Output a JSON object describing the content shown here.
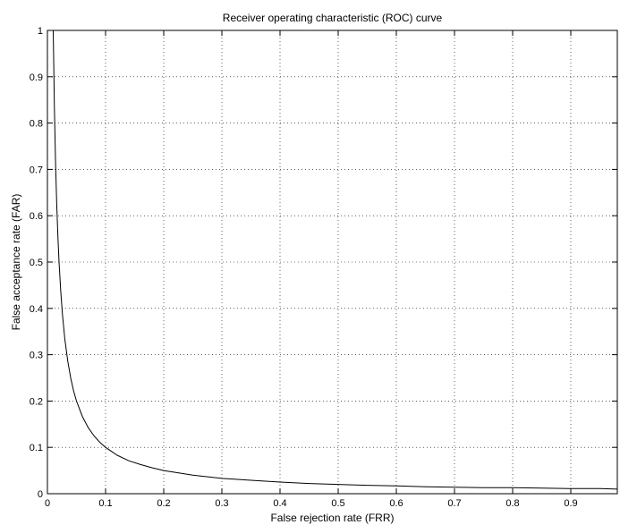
{
  "chart_data": {
    "type": "line",
    "title": "Receiver operating characteristic (ROC) curve",
    "xlabel": "False rejection rate (FRR)",
    "ylabel": "False acceptance rate (FAR)",
    "xlim": [
      0,
      0.98
    ],
    "ylim": [
      0,
      1
    ],
    "xticks": [
      0,
      0.1,
      0.2,
      0.3,
      0.4,
      0.5,
      0.6,
      0.7,
      0.8,
      0.9
    ],
    "xtick_labels": [
      "0",
      "0.1",
      "0.2",
      "0.3",
      "0.4",
      "0.5",
      "0.6",
      "0.7",
      "0.8",
      "0.9"
    ],
    "yticks": [
      0,
      0.1,
      0.2,
      0.3,
      0.4,
      0.5,
      0.6,
      0.7,
      0.8,
      0.9,
      1
    ],
    "ytick_labels": [
      "0",
      "0.1",
      "0.2",
      "0.3",
      "0.4",
      "0.5",
      "0.6",
      "0.7",
      "0.8",
      "0.9",
      "1"
    ],
    "grid": true,
    "series": [
      {
        "color": "#000000",
        "x": [
          0.01,
          0.012,
          0.014,
          0.016,
          0.018,
          0.02,
          0.023,
          0.026,
          0.03,
          0.035,
          0.04,
          0.045,
          0.05,
          0.06,
          0.07,
          0.08,
          0.09,
          0.1,
          0.12,
          0.14,
          0.16,
          0.18,
          0.2,
          0.25,
          0.3,
          0.35,
          0.4,
          0.45,
          0.5,
          0.55,
          0.6,
          0.65,
          0.7,
          0.75,
          0.8,
          0.85,
          0.9,
          0.95,
          0.98
        ],
        "y": [
          1.0,
          0.833,
          0.714,
          0.625,
          0.556,
          0.5,
          0.435,
          0.385,
          0.333,
          0.286,
          0.25,
          0.222,
          0.2,
          0.167,
          0.143,
          0.125,
          0.111,
          0.1,
          0.083,
          0.071,
          0.063,
          0.056,
          0.05,
          0.04,
          0.033,
          0.029,
          0.025,
          0.022,
          0.02,
          0.018,
          0.017,
          0.015,
          0.014,
          0.013,
          0.013,
          0.012,
          0.011,
          0.011,
          0.01
        ]
      }
    ]
  }
}
